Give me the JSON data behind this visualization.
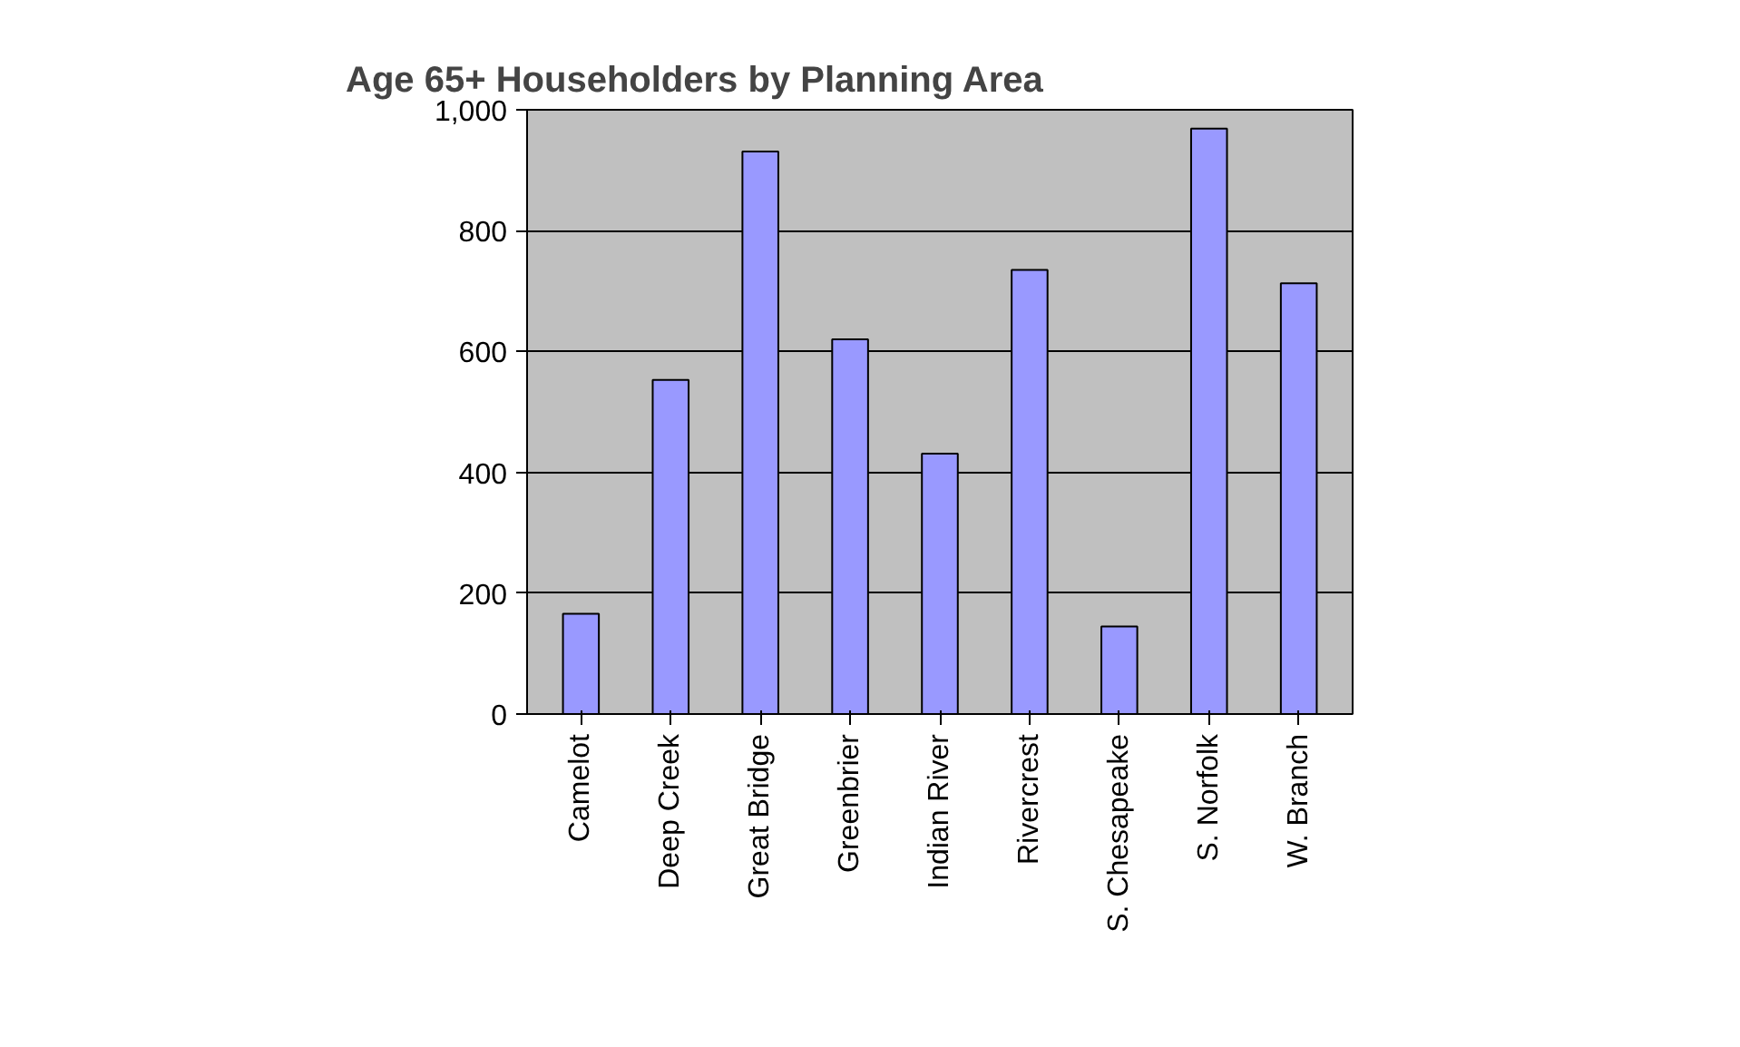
{
  "chart_data": {
    "type": "bar",
    "title": "Age 65+ Householders by Planning Area",
    "categories": [
      "Camelot",
      "Deep Creek",
      "Great Bridge",
      "Greenbrier",
      "Indian River",
      "Rivercrest",
      "S. Chesapeake",
      "S. Norfolk",
      "W. Branch"
    ],
    "values": [
      166,
      553,
      931,
      620,
      431,
      735,
      145,
      969,
      713
    ],
    "color": "#9999ff",
    "ylim": [
      0,
      1000
    ],
    "yticks": [
      0,
      200,
      400,
      600,
      800,
      {
        "value": 1000,
        "label": "1,000"
      }
    ],
    "grid": "y"
  }
}
